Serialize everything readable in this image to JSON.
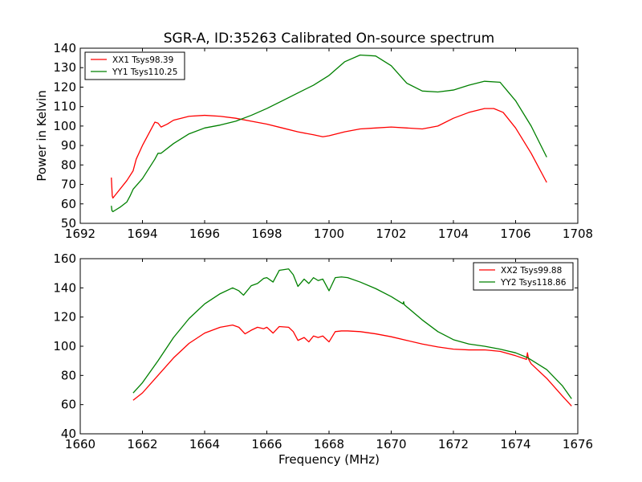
{
  "figure": {
    "title": "SGR-A, ID:35263 Calibrated On-source spectrum"
  },
  "chart_data": [
    {
      "type": "line",
      "title": "SGR-A, ID:35263 Calibrated On-source spectrum",
      "xlabel": "",
      "ylabel": "Power in Kelvin",
      "xlim": [
        1692,
        1708
      ],
      "ylim": [
        50,
        140
      ],
      "xticks": [
        1692,
        1694,
        1696,
        1698,
        1700,
        1702,
        1704,
        1706,
        1708
      ],
      "yticks": [
        50,
        60,
        70,
        80,
        90,
        100,
        110,
        120,
        130,
        140
      ],
      "grid": false,
      "legend_position": "top-left",
      "series": [
        {
          "name": "XX1 Tsys98.39",
          "color": "#ff0000",
          "x": [
            1693.0,
            1693.03,
            1693.05,
            1693.2,
            1693.5,
            1693.7,
            1693.8,
            1694.0,
            1694.2,
            1694.4,
            1694.5,
            1694.6,
            1694.8,
            1695.0,
            1695.5,
            1696.0,
            1696.5,
            1697.0,
            1697.5,
            1698.0,
            1698.5,
            1699.0,
            1699.5,
            1699.8,
            1700.0,
            1700.5,
            1701.0,
            1701.5,
            1702.0,
            1702.5,
            1703.0,
            1703.5,
            1704.0,
            1704.5,
            1705.0,
            1705.3,
            1705.6,
            1706.0,
            1706.5,
            1707.0
          ],
          "y": [
            73.5,
            64,
            63,
            66,
            72,
            77,
            83,
            90,
            96,
            102,
            101.5,
            99.5,
            101,
            103,
            105,
            105.5,
            105,
            104,
            102.5,
            101,
            99,
            97,
            95.5,
            94.5,
            95,
            97,
            98.5,
            99,
            99.5,
            99,
            98.5,
            100,
            104,
            107,
            109,
            109,
            107,
            99,
            86,
            71
          ]
        },
        {
          "name": "YY1 Tsys110.25",
          "color": "#008000",
          "x": [
            1693.0,
            1693.02,
            1693.05,
            1693.1,
            1693.3,
            1693.5,
            1693.6,
            1693.7,
            1694.0,
            1694.2,
            1694.4,
            1694.5,
            1694.6,
            1695.0,
            1695.5,
            1696.0,
            1696.5,
            1697.0,
            1697.5,
            1698.0,
            1698.5,
            1699.0,
            1699.5,
            1700.0,
            1700.5,
            1701.0,
            1701.5,
            1702.0,
            1702.5,
            1703.0,
            1703.5,
            1704.0,
            1704.5,
            1705.0,
            1705.5,
            1706.0,
            1706.5,
            1707.0
          ],
          "y": [
            59,
            56.5,
            56,
            56.5,
            58.5,
            61,
            64,
            67.5,
            73,
            78,
            83,
            86,
            86,
            91,
            96,
            99,
            100.5,
            102.5,
            105.5,
            109,
            113,
            117,
            121,
            126,
            133,
            136.5,
            136,
            131,
            122,
            118,
            117.5,
            118.5,
            121,
            123,
            122.5,
            113,
            100,
            84
          ]
        }
      ]
    },
    {
      "type": "line",
      "title": "",
      "xlabel": "Frequency (MHz)",
      "ylabel": "",
      "xlim": [
        1660,
        1676
      ],
      "ylim": [
        40,
        160
      ],
      "xticks": [
        1660,
        1662,
        1664,
        1666,
        1668,
        1670,
        1672,
        1674,
        1676
      ],
      "yticks": [
        40,
        60,
        80,
        100,
        120,
        140,
        160
      ],
      "grid": false,
      "legend_position": "top-right",
      "series": [
        {
          "name": "XX2 Tsys99.88",
          "color": "#ff0000",
          "x": [
            1661.7,
            1662.0,
            1662.5,
            1663.0,
            1663.5,
            1664.0,
            1664.5,
            1664.9,
            1665.1,
            1665.3,
            1665.5,
            1665.7,
            1665.9,
            1666.0,
            1666.2,
            1666.4,
            1666.7,
            1666.85,
            1667.0,
            1667.2,
            1667.35,
            1667.5,
            1667.65,
            1667.8,
            1668.0,
            1668.2,
            1668.4,
            1668.6,
            1669.0,
            1669.5,
            1670.0,
            1670.5,
            1671.0,
            1671.5,
            1672.0,
            1672.5,
            1673.0,
            1673.5,
            1674.0,
            1674.35,
            1674.38,
            1674.42,
            1674.5,
            1675.0,
            1675.5,
            1675.8
          ],
          "y": [
            63,
            68,
            80,
            92,
            102,
            109,
            113,
            114.5,
            113,
            108.5,
            111,
            113,
            112,
            113,
            109,
            113.5,
            113,
            110,
            104,
            106,
            103,
            107,
            106,
            107,
            103,
            110,
            110.5,
            110.5,
            110,
            108.5,
            106.5,
            104,
            101.5,
            99.5,
            98,
            97.5,
            97.5,
            96.5,
            93.5,
            91,
            95.5,
            91,
            88,
            78,
            66,
            59
          ]
        },
        {
          "name": "YY2 Tsys118.86",
          "color": "#008000",
          "x": [
            1661.7,
            1662.0,
            1662.5,
            1663.0,
            1663.5,
            1664.0,
            1664.5,
            1664.9,
            1665.1,
            1665.25,
            1665.5,
            1665.7,
            1665.9,
            1666.0,
            1666.2,
            1666.4,
            1666.7,
            1666.85,
            1667.0,
            1667.2,
            1667.35,
            1667.5,
            1667.65,
            1667.8,
            1668.0,
            1668.2,
            1668.4,
            1668.6,
            1669.0,
            1669.5,
            1670.0,
            1670.38,
            1670.4,
            1670.42,
            1670.5,
            1671.0,
            1671.5,
            1672.0,
            1672.5,
            1673.0,
            1673.5,
            1674.0,
            1674.4,
            1675.0,
            1675.5,
            1675.8
          ],
          "y": [
            68,
            75,
            90,
            106,
            119,
            129,
            136,
            140,
            138,
            135,
            141.5,
            143,
            146.5,
            147,
            144,
            152,
            153,
            149,
            141,
            146,
            143,
            147,
            145,
            146,
            138,
            147,
            147.5,
            147,
            144,
            139.5,
            134,
            129,
            130.5,
            128.5,
            127,
            118,
            110,
            104.5,
            101.5,
            100,
            98,
            95.5,
            92,
            84,
            73,
            64
          ]
        }
      ]
    }
  ]
}
